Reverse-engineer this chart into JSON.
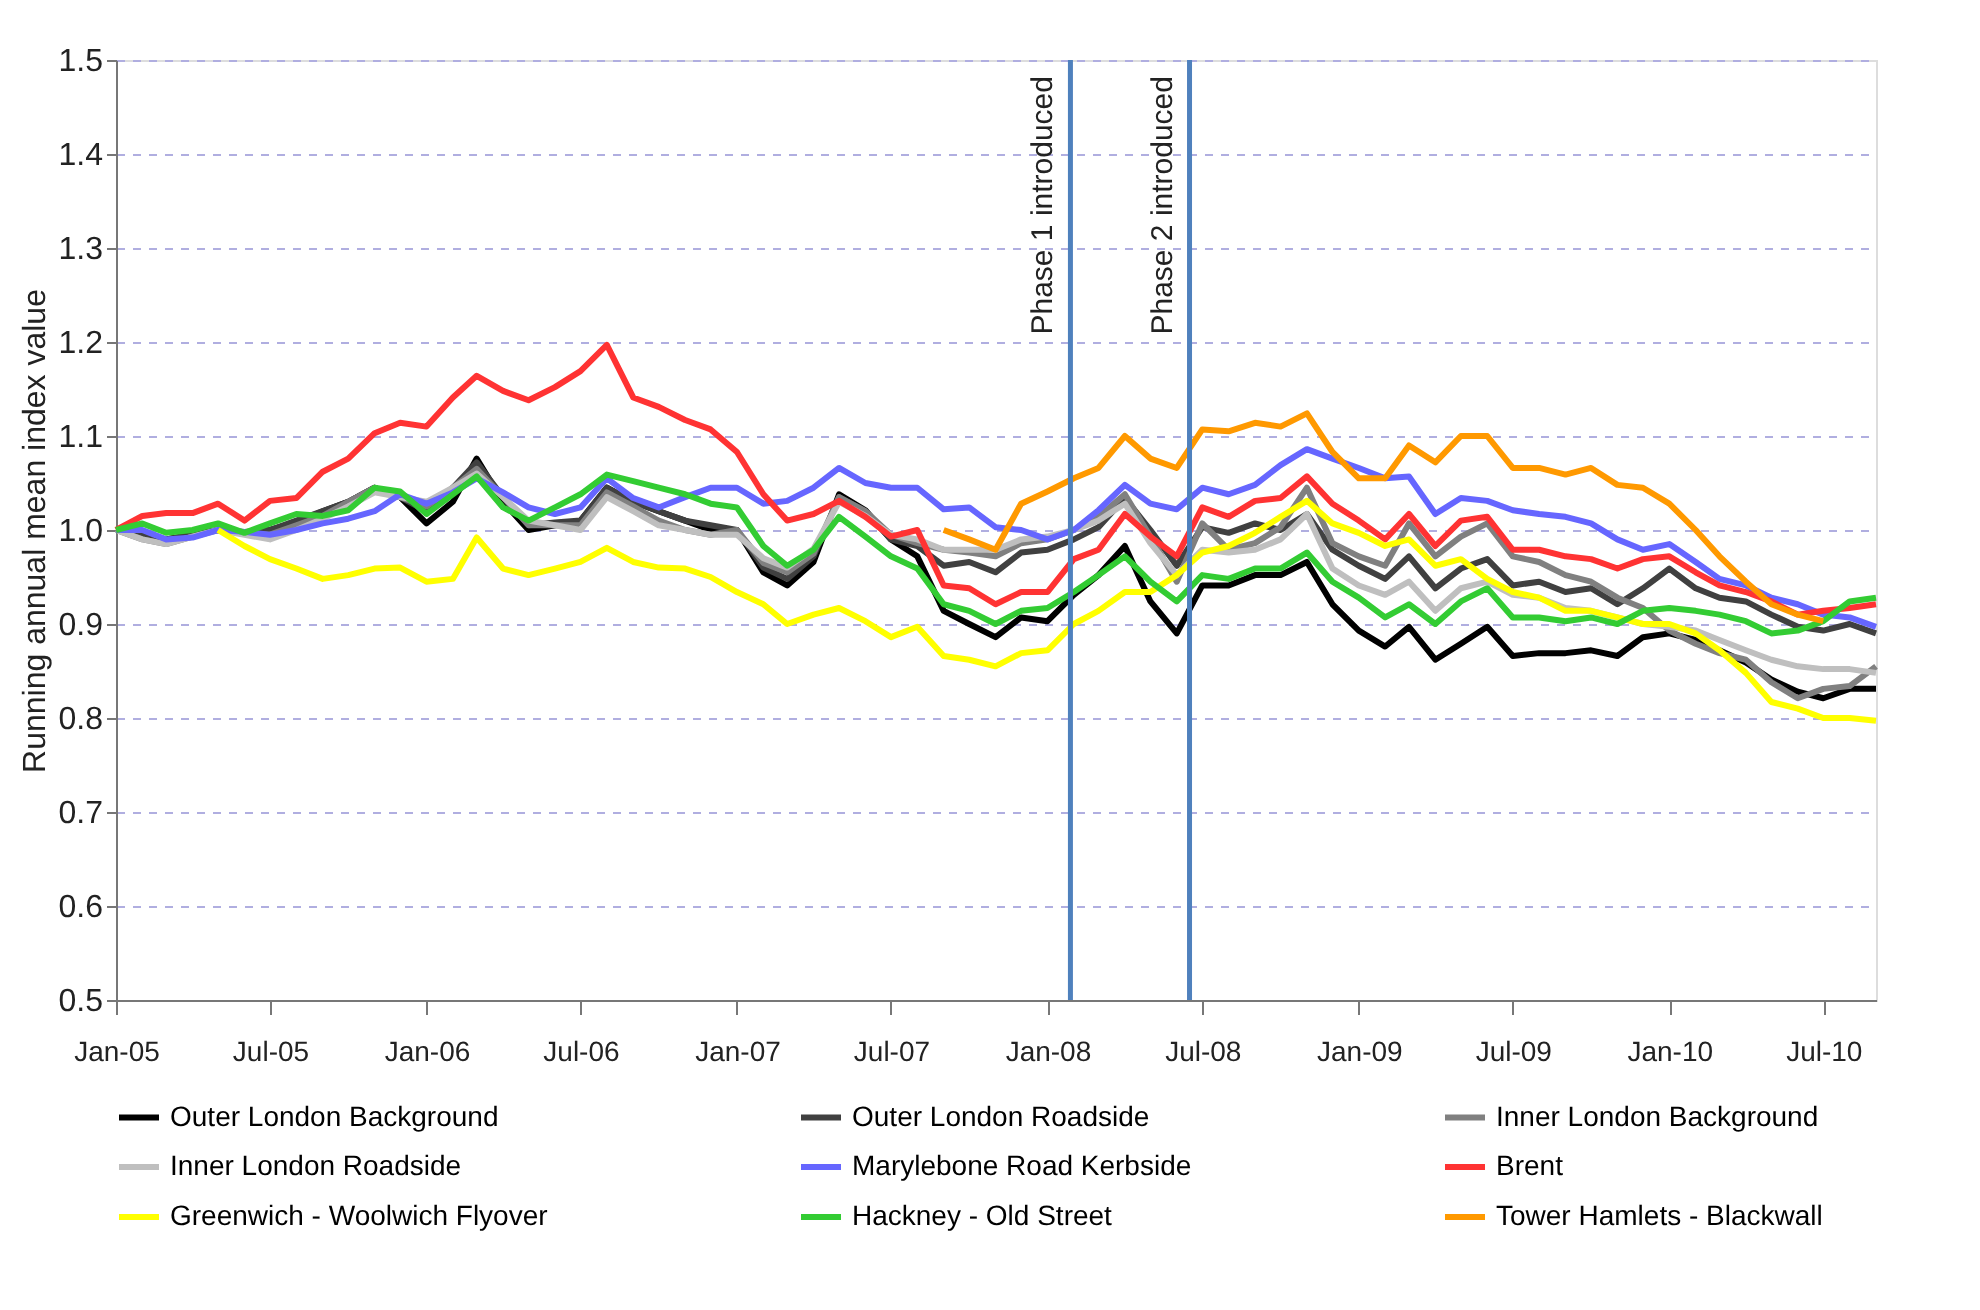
{
  "chart_data": {
    "type": "line",
    "ylabel": "Running annual mean index value",
    "x": [
      "2005-01",
      "2005-02",
      "2005-03",
      "2005-04",
      "2005-05",
      "2005-06",
      "2005-07",
      "2005-08",
      "2005-09",
      "2005-10",
      "2005-11",
      "2005-12",
      "2006-01",
      "2006-02",
      "2006-03",
      "2006-04",
      "2006-05",
      "2006-06",
      "2006-07",
      "2006-08",
      "2006-09",
      "2006-10",
      "2006-11",
      "2006-12",
      "2007-01",
      "2007-02",
      "2007-03",
      "2007-04",
      "2007-05",
      "2007-06",
      "2007-07",
      "2007-08",
      "2007-09",
      "2007-10",
      "2007-11",
      "2007-12",
      "2008-01",
      "2008-02",
      "2008-03",
      "2008-04",
      "2008-05",
      "2008-06",
      "2008-07",
      "2008-08",
      "2008-09",
      "2008-10",
      "2008-11",
      "2008-12",
      "2009-01",
      "2009-02",
      "2009-03",
      "2009-04",
      "2009-05",
      "2009-06",
      "2009-07",
      "2009-08",
      "2009-09",
      "2009-10",
      "2009-11",
      "2009-12",
      "2010-01",
      "2010-02",
      "2010-03",
      "2010-04",
      "2010-05",
      "2010-06",
      "2010-07",
      "2010-08",
      "2010-09"
    ],
    "series": [
      {
        "name": "Outer London Background",
        "color": "#000000",
        "values": [
          1.0,
          0.995,
          0.99,
          0.995,
          1.0,
          0.997,
          1.0,
          1.008,
          1.02,
          1.03,
          1.045,
          1.035,
          1.007,
          1.03,
          1.076,
          1.03,
          1.0,
          1.005,
          1.01,
          1.045,
          1.03,
          1.02,
          1.01,
          1.0,
          1.0,
          0.955,
          0.941,
          0.966,
          1.038,
          1.021,
          0.99,
          0.972,
          0.914,
          0.9,
          0.886,
          0.907,
          0.903,
          0.931,
          0.952,
          0.983,
          0.924,
          0.89,
          0.941,
          0.941,
          0.952,
          0.952,
          0.966,
          0.921,
          0.893,
          0.876,
          0.897,
          0.862,
          0.879,
          0.897,
          0.866,
          0.869,
          0.869,
          0.872,
          0.866,
          0.886,
          0.89,
          0.883,
          0.872,
          0.859,
          0.841,
          0.828,
          0.821,
          0.831,
          0.831
        ]
      },
      {
        "name": "Outer London Roadside",
        "color": "#404040",
        "values": [
          1.0,
          0.995,
          0.99,
          0.995,
          1.0,
          0.998,
          1.0,
          1.01,
          1.02,
          1.03,
          1.045,
          1.035,
          1.02,
          1.045,
          1.072,
          1.035,
          1.005,
          1.008,
          1.01,
          1.045,
          1.03,
          1.02,
          1.01,
          1.005,
          1.0,
          0.96,
          0.948,
          0.972,
          1.035,
          1.02,
          0.99,
          0.983,
          0.962,
          0.966,
          0.955,
          0.976,
          0.979,
          0.99,
          1.003,
          1.034,
          1.0,
          0.962,
          1.003,
          0.997,
          1.007,
          1.0,
          1.017,
          0.979,
          0.962,
          0.948,
          0.972,
          0.938,
          0.959,
          0.969,
          0.941,
          0.945,
          0.934,
          0.938,
          0.921,
          0.938,
          0.959,
          0.938,
          0.928,
          0.924,
          0.91,
          0.897,
          0.893,
          0.9,
          0.89
        ]
      },
      {
        "name": "Inner London Background",
        "color": "#808080",
        "values": [
          1.0,
          0.99,
          0.985,
          0.993,
          1.0,
          0.997,
          0.995,
          1.005,
          1.015,
          1.03,
          1.045,
          1.035,
          1.025,
          1.045,
          1.065,
          1.035,
          1.005,
          1.005,
          1.005,
          1.04,
          1.025,
          1.01,
          1.0,
          0.995,
          1.0,
          0.965,
          0.955,
          0.975,
          1.035,
          1.02,
          0.995,
          0.986,
          0.979,
          0.976,
          0.972,
          0.986,
          0.99,
          1.0,
          1.014,
          1.038,
          0.993,
          0.945,
          1.007,
          0.979,
          0.986,
          1.003,
          1.045,
          0.986,
          0.972,
          0.962,
          1.007,
          0.972,
          0.993,
          1.007,
          0.972,
          0.966,
          0.952,
          0.945,
          0.928,
          0.917,
          0.893,
          0.879,
          0.869,
          0.862,
          0.838,
          0.821,
          0.831,
          0.834,
          0.855
        ]
      },
      {
        "name": "Inner London Roadside",
        "color": "#bfbfbf",
        "values": [
          1.0,
          0.99,
          0.985,
          0.993,
          1.0,
          0.995,
          0.99,
          1.0,
          1.012,
          1.025,
          1.04,
          1.035,
          1.03,
          1.045,
          1.06,
          1.035,
          1.01,
          1.005,
          1.0,
          1.035,
          1.02,
          1.005,
          1.0,
          0.995,
          0.995,
          0.97,
          0.96,
          0.98,
          1.03,
          1.015,
          0.995,
          0.99,
          0.979,
          0.979,
          0.979,
          0.99,
          0.993,
          1.0,
          1.01,
          1.028,
          0.986,
          0.952,
          0.979,
          0.976,
          0.979,
          0.99,
          1.017,
          0.959,
          0.941,
          0.931,
          0.945,
          0.914,
          0.938,
          0.945,
          0.931,
          0.928,
          0.917,
          0.914,
          0.907,
          0.9,
          0.897,
          0.893,
          0.883,
          0.872,
          0.862,
          0.855,
          0.852,
          0.852,
          0.848
        ]
      },
      {
        "name": "Marylebone Road Kerbside",
        "color": "#6666ff",
        "values": [
          1.0,
          1.0,
          0.99,
          0.992,
          1.0,
          0.998,
          0.995,
          1.0,
          1.007,
          1.012,
          1.02,
          1.038,
          1.028,
          1.04,
          1.055,
          1.04,
          1.024,
          1.017,
          1.024,
          1.055,
          1.034,
          1.024,
          1.035,
          1.045,
          1.045,
          1.028,
          1.031,
          1.045,
          1.066,
          1.05,
          1.045,
          1.045,
          1.022,
          1.024,
          1.003,
          1.0,
          0.99,
          1.0,
          1.021,
          1.048,
          1.028,
          1.022,
          1.045,
          1.038,
          1.048,
          1.069,
          1.086,
          1.076,
          1.066,
          1.055,
          1.057,
          1.017,
          1.034,
          1.031,
          1.021,
          1.017,
          1.014,
          1.007,
          0.99,
          0.979,
          0.985,
          0.966,
          0.948,
          0.941,
          0.928,
          0.921,
          0.91,
          0.907,
          0.897
        ]
      },
      {
        "name": "Brent",
        "color": "#ff3333",
        "values": [
          1.0,
          1.015,
          1.018,
          1.018,
          1.028,
          1.01,
          1.031,
          1.034,
          1.062,
          1.076,
          1.103,
          1.114,
          1.11,
          1.141,
          1.164,
          1.148,
          1.138,
          1.152,
          1.169,
          1.197,
          1.141,
          1.131,
          1.117,
          1.107,
          1.083,
          1.038,
          1.01,
          1.017,
          1.031,
          1.014,
          0.993,
          1.0,
          0.941,
          0.938,
          0.921,
          0.934,
          0.934,
          0.969,
          0.979,
          1.017,
          0.993,
          0.972,
          1.024,
          1.014,
          1.031,
          1.034,
          1.057,
          1.028,
          1.01,
          0.99,
          1.017,
          0.983,
          1.01,
          1.014,
          0.979,
          0.979,
          0.972,
          0.969,
          0.959,
          0.969,
          0.972,
          0.955,
          0.941,
          0.934,
          0.924,
          0.91,
          0.914,
          0.917,
          0.921
        ]
      },
      {
        "name": "Greenwich - Woolwich Flyover",
        "color": "#ffff00",
        "values": [
          null,
          null,
          null,
          null,
          1.0,
          0.983,
          0.969,
          0.959,
          0.948,
          0.952,
          0.959,
          0.96,
          0.945,
          0.948,
          0.992,
          0.959,
          0.952,
          0.959,
          0.966,
          0.981,
          0.966,
          0.96,
          0.959,
          0.95,
          0.934,
          0.921,
          0.9,
          0.91,
          0.917,
          0.903,
          0.886,
          0.897,
          0.866,
          0.862,
          0.855,
          0.869,
          0.872,
          0.9,
          0.914,
          0.934,
          0.934,
          0.952,
          0.976,
          0.983,
          0.997,
          1.014,
          1.031,
          1.007,
          0.997,
          0.983,
          0.99,
          0.962,
          0.969,
          0.948,
          0.934,
          0.928,
          0.914,
          0.914,
          0.907,
          0.9,
          0.9,
          0.89,
          0.872,
          0.848,
          0.817,
          0.81,
          0.8,
          0.8,
          0.797
        ]
      },
      {
        "name": "Hackney - Old Street",
        "color": "#33cc33",
        "values": [
          1.0,
          1.007,
          0.997,
          1.0,
          1.007,
          0.997,
          1.007,
          1.017,
          1.015,
          1.021,
          1.045,
          1.041,
          1.017,
          1.038,
          1.057,
          1.024,
          1.01,
          1.024,
          1.038,
          1.059,
          1.052,
          1.045,
          1.038,
          1.028,
          1.024,
          0.983,
          0.962,
          0.979,
          1.014,
          0.993,
          0.972,
          0.959,
          0.921,
          0.914,
          0.9,
          0.914,
          0.917,
          0.934,
          0.952,
          0.972,
          0.945,
          0.924,
          0.952,
          0.948,
          0.959,
          0.959,
          0.976,
          0.945,
          0.928,
          0.907,
          0.921,
          0.9,
          0.924,
          0.938,
          0.907,
          0.907,
          0.903,
          0.907,
          0.9,
          0.914,
          0.917,
          0.914,
          0.91,
          0.903,
          0.89,
          0.893,
          0.903,
          0.924,
          0.928
        ]
      },
      {
        "name": "Tower Hamlets - Blackwall",
        "color": "#ff9900",
        "values": [
          null,
          null,
          null,
          null,
          null,
          null,
          null,
          null,
          null,
          null,
          null,
          null,
          null,
          null,
          null,
          null,
          null,
          null,
          null,
          null,
          null,
          null,
          null,
          null,
          null,
          null,
          null,
          null,
          null,
          null,
          null,
          null,
          1.0,
          0.99,
          0.979,
          1.028,
          1.041,
          1.055,
          1.066,
          1.1,
          1.076,
          1.066,
          1.107,
          1.105,
          1.114,
          1.11,
          1.124,
          1.083,
          1.055,
          1.055,
          1.09,
          1.072,
          1.1,
          1.1,
          1.066,
          1.066,
          1.059,
          1.066,
          1.048,
          1.045,
          1.028,
          1.0,
          0.972,
          0.945,
          0.921,
          0.91,
          0.903,
          null,
          null
        ]
      }
    ],
    "xlim": [
      "2005-01",
      "2010-09"
    ],
    "xticks": [
      {
        "value": "2005-01",
        "label": "Jan-05"
      },
      {
        "value": "2005-07",
        "label": "Jul-05"
      },
      {
        "value": "2006-01",
        "label": "Jan-06"
      },
      {
        "value": "2006-07",
        "label": "Jul-06"
      },
      {
        "value": "2007-01",
        "label": "Jan-07"
      },
      {
        "value": "2007-07",
        "label": "Jul-07"
      },
      {
        "value": "2008-01",
        "label": "Jan-08"
      },
      {
        "value": "2008-07",
        "label": "Jul-08"
      },
      {
        "value": "2009-01",
        "label": "Jan-09"
      },
      {
        "value": "2009-07",
        "label": "Jul-09"
      },
      {
        "value": "2010-01",
        "label": "Jan-10"
      },
      {
        "value": "2010-07",
        "label": "Jul-10"
      }
    ],
    "ylim": [
      0.5,
      1.5
    ],
    "yticks": [
      0.5,
      0.6,
      0.7,
      0.8,
      0.9,
      {
        "value": 1,
        "label": "1.0"
      },
      1.1,
      1.2,
      1.3,
      1.4,
      1.5
    ],
    "ref_lines": [
      {
        "axis": "x",
        "value": "2008-01-28",
        "label": "Phase 1 introduced",
        "color": "#4f81bd"
      },
      {
        "axis": "x",
        "value": "2008-06-16",
        "label": "Phase 2 introduced",
        "color": "#4f81bd"
      }
    ],
    "grid": "y",
    "legend": "bottom",
    "line_style": "solid",
    "marker": "none"
  }
}
